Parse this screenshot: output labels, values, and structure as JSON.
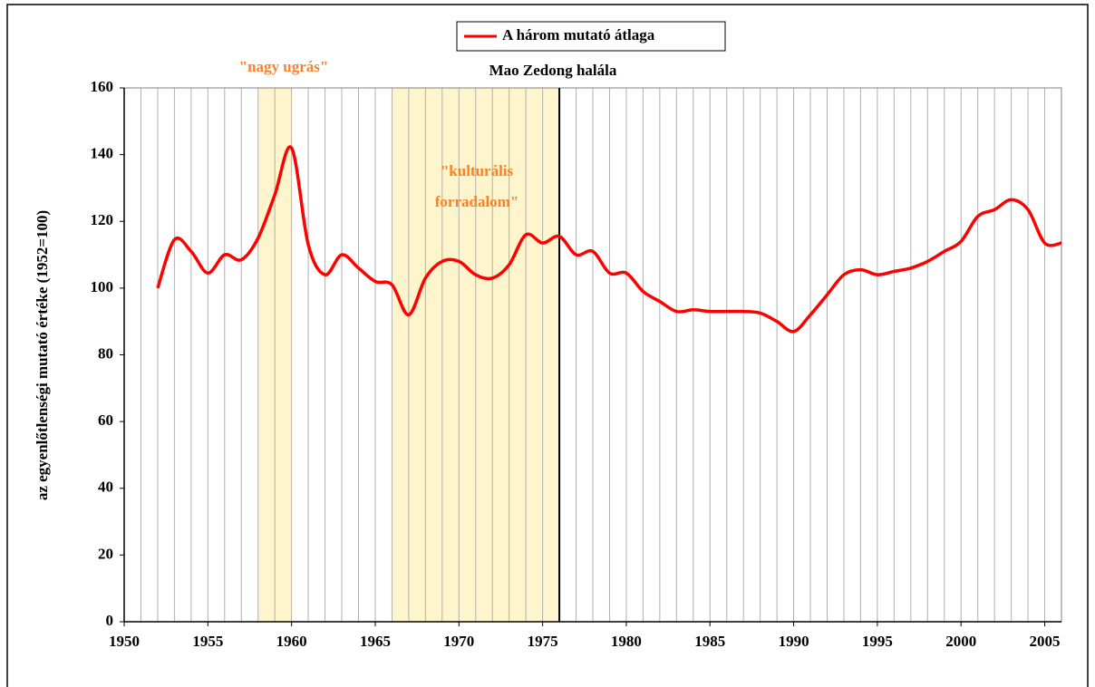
{
  "chart_data": {
    "type": "line",
    "legend_label": "A három mutató átlaga",
    "ylabel": "az egyenlőtlenségi mutató értéke (1952=100)",
    "x": [
      1952,
      1953,
      1954,
      1955,
      1956,
      1957,
      1958,
      1959,
      1960,
      1961,
      1962,
      1963,
      1964,
      1965,
      1966,
      1967,
      1968,
      1969,
      1970,
      1971,
      1972,
      1973,
      1974,
      1975,
      1976,
      1977,
      1978,
      1979,
      1980,
      1981,
      1982,
      1983,
      1984,
      1985,
      1986,
      1987,
      1988,
      1989,
      1990,
      1991,
      1992,
      1993,
      1994,
      1995,
      1996,
      1997,
      1998,
      1999,
      2000,
      2001,
      2002,
      2003,
      2004,
      2005,
      2006
    ],
    "series": [
      {
        "name": "A három mutató átlaga",
        "color": "#ff0000",
        "values": [
          100,
          114.5,
          111,
          104.5,
          110,
          108.5,
          115,
          128,
          142,
          113,
          104,
          110,
          106,
          102,
          101,
          92,
          103,
          108,
          108,
          104,
          103,
          107,
          116,
          113.5,
          115.5,
          110,
          111,
          104.5,
          104.5,
          99,
          96,
          93,
          93.5,
          93,
          93,
          93,
          92.5,
          90,
          87,
          92,
          98,
          104,
          105.5,
          104,
          105,
          106,
          108,
          111,
          114,
          121.5,
          123.5,
          126.5,
          123.5,
          113.5,
          113.5
        ]
      }
    ],
    "xlim": [
      1950,
      2006
    ],
    "xticks": [
      1950,
      1955,
      1960,
      1965,
      1970,
      1975,
      1980,
      1985,
      1990,
      1995,
      2000,
      2005
    ],
    "xgrid_step": 1,
    "ylim": [
      0,
      160
    ],
    "yticks": [
      0,
      20,
      40,
      60,
      80,
      100,
      120,
      140,
      160
    ],
    "shaded_periods": [
      [
        1958,
        1960
      ],
      [
        1966,
        1976
      ]
    ],
    "shade_color": "#fff5cc",
    "event_line": 1976,
    "annotations": [
      {
        "text": "\"nagy ugrás\"",
        "color": "#ff7f27"
      },
      {
        "text": "Mao Zedong halála",
        "color": "#000000"
      },
      {
        "text": "\"kulturális",
        "color": "#ff7f27"
      },
      {
        "text": "forradalom\"",
        "color": "#ff7f27"
      }
    ]
  }
}
